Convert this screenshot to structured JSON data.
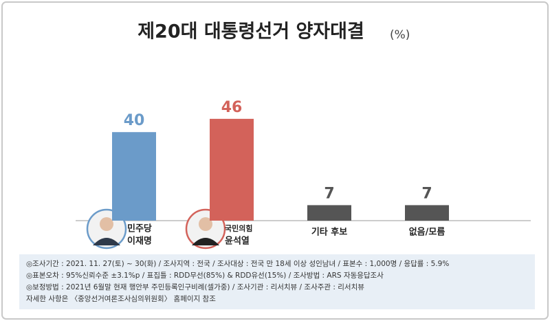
{
  "chart_data": {
    "type": "bar",
    "title": "제20대 대통령선거 양자대결",
    "unit": "(%)",
    "categories": [
      "이재명",
      "윤석열",
      "기타 후보",
      "없음/모름"
    ],
    "parties": [
      "민주당",
      "국민의힘",
      null,
      null
    ],
    "values": [
      40,
      46,
      7,
      7
    ],
    "colors": [
      "#6b9bc9",
      "#d3625a",
      "#555555",
      "#555555"
    ],
    "ylim": [
      0,
      50
    ],
    "notes": [
      "◎조사기간 : 2021. 11. 27(토) ~ 30(화) / 조사지역 : 전국 / 조사대상 : 전국 만 18세 이상 성인남녀 / 표본수 : 1,000명 / 응답률 : 5.9%",
      "◎표본오차 : 95%신뢰수준 ±3.1%p / 표집틀 : RDD무선(85%) & RDD유선(15%) / 조사방법 : ARS 자동응답조사",
      "◎보정방법 : 2021년 6월말 현재 행안부 주민등록인구비례(셀가중) / 조사기관 : 리서치뷰 / 조사주관 : 리서치뷰",
      "자세한 사항은 〈중앙선거여론조사심의위원회〉 홈페이지 참조"
    ]
  }
}
